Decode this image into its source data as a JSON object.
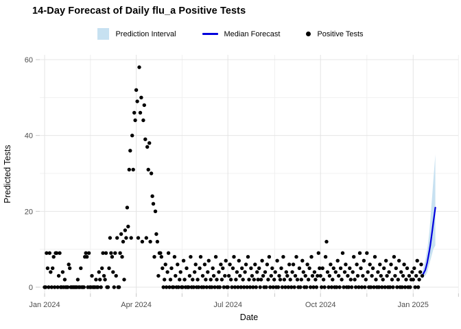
{
  "title": "14-Day Forecast of Daily flu_a Positive Tests",
  "legend": {
    "items": [
      {
        "label": "Prediction Interval",
        "type": "band",
        "color": "#c7e1f1"
      },
      {
        "label": "Median Forecast",
        "type": "line",
        "color": "#0000dd"
      },
      {
        "label": "Positive Tests",
        "type": "point",
        "color": "#000000"
      }
    ]
  },
  "axes": {
    "x_title": "Date",
    "y_title": "Predicted Tests",
    "x_tick_labels": [
      "Jan 2024",
      "Apr 2024",
      "Jul 2024",
      "Oct 2024",
      "Jan 2025"
    ],
    "y_tick_labels": [
      "0",
      "20",
      "40",
      "60"
    ]
  },
  "colors": {
    "grid_major": "#e4e4e4",
    "grid_minor": "#f0f0f0",
    "tick_mark": "#c8c8c8",
    "axis_text": "#4d4d4d",
    "band": "#c7e1f1",
    "median_line": "#0000dd",
    "point": "#000000"
  },
  "chart_data": {
    "type": "scatter",
    "title": "14-Day Forecast of Daily flu_a Positive Tests",
    "xlabel": "Date",
    "ylabel": "Predicted Tests",
    "ylim": [
      0,
      60
    ],
    "y_major_ticks": [
      0,
      20,
      40,
      60
    ],
    "y_minor_ticks": [
      10,
      30,
      50
    ],
    "x_major_ticks": [
      {
        "label": "Jan 2024",
        "day": 0
      },
      {
        "label": "Apr 2024",
        "day": 91
      },
      {
        "label": "Jul 2024",
        "day": 182
      },
      {
        "label": "Oct 2024",
        "day": 274
      },
      {
        "label": "Jan 2025",
        "day": 366
      }
    ],
    "x_minor_tick_days": [
      45.5,
      136.5,
      228.5,
      320,
      411
    ],
    "grid": true,
    "legend_position": "top-center",
    "observed": {
      "name": "Positive Tests",
      "start_date": "2024-01-01",
      "note": "daily counts, day 0 = 2024-01-01, approximate values read from plot",
      "daily_values": [
        0,
        0,
        9,
        5,
        0,
        9,
        4,
        0,
        5,
        8,
        0,
        9,
        9,
        0,
        3,
        9,
        0,
        0,
        4,
        0,
        2,
        0,
        0,
        0,
        6,
        5,
        0,
        0,
        0,
        0,
        0,
        0,
        0,
        2,
        0,
        0,
        5,
        0,
        0,
        0,
        8,
        9,
        8,
        0,
        9,
        0,
        0,
        3,
        0,
        0,
        0,
        2,
        0,
        0,
        4,
        2,
        0,
        5,
        9,
        3,
        2,
        9,
        0,
        0,
        5,
        13,
        9,
        8,
        4,
        0,
        9,
        3,
        13,
        0,
        0,
        9,
        14,
        8,
        12,
        2,
        15,
        13,
        21,
        16,
        31,
        36,
        13,
        40,
        31,
        46,
        44,
        52,
        49,
        13,
        58,
        46,
        50,
        12,
        44,
        48,
        39,
        13,
        37,
        31,
        38,
        12,
        30,
        24,
        22,
        8,
        20,
        14,
        12,
        3,
        9,
        9,
        8,
        5,
        0,
        2,
        6,
        0,
        4,
        9,
        0,
        2,
        5,
        0,
        0,
        8,
        3,
        0,
        6,
        0,
        2,
        4,
        0,
        0,
        7,
        2,
        0,
        5,
        0,
        0,
        3,
        8,
        0,
        2,
        0,
        4,
        6,
        0,
        2,
        0,
        5,
        8,
        0,
        3,
        0,
        6,
        2,
        0,
        4,
        7,
        0,
        2,
        0,
        5,
        3,
        0,
        8,
        2,
        0,
        4,
        0,
        6,
        2,
        5,
        0,
        3,
        7,
        0,
        0,
        3,
        6,
        2,
        0,
        5,
        8,
        0,
        2,
        4,
        0,
        7,
        3,
        0,
        5,
        2,
        0,
        4,
        6,
        0,
        8,
        2,
        0,
        5,
        3,
        0,
        2,
        6,
        0,
        4,
        2,
        5,
        0,
        2,
        7,
        3,
        0,
        4,
        0,
        6,
        2,
        8,
        0,
        3,
        5,
        0,
        2,
        4,
        0,
        7,
        0,
        3,
        2,
        5,
        0,
        8,
        2,
        0,
        4,
        3,
        0,
        6,
        2,
        0,
        4,
        6,
        0,
        3,
        8,
        2,
        0,
        5,
        0,
        2,
        7,
        4,
        0,
        3,
        0,
        6,
        2,
        5,
        0,
        8,
        3,
        0,
        4,
        2,
        0,
        3,
        9,
        5,
        3,
        0,
        5,
        2,
        0,
        8,
        12,
        4,
        0,
        3,
        6,
        0,
        2,
        5,
        0,
        4,
        0,
        7,
        3,
        0,
        5,
        2,
        9,
        0,
        4,
        6,
        0,
        3,
        0,
        5,
        2,
        0,
        4,
        8,
        2,
        0,
        6,
        3,
        0,
        9,
        5,
        0,
        3,
        7,
        0,
        2,
        9,
        4,
        0,
        6,
        0,
        3,
        5,
        0,
        8,
        2,
        0,
        4,
        0,
        6,
        3,
        0,
        2,
        5,
        0,
        7,
        3,
        0,
        4,
        0,
        6,
        2,
        0,
        8,
        3,
        5,
        0,
        2,
        7,
        0,
        4,
        0,
        3,
        6,
        0,
        2,
        5,
        0,
        3,
        0,
        2,
        4,
        2,
        5,
        0,
        3,
        7,
        0,
        2,
        4,
        6,
        3
      ]
    },
    "forecast": {
      "horizon_days": 14,
      "start_day": 375,
      "median": {
        "name": "Median Forecast",
        "values": [
          3,
          3.5,
          4,
          4.5,
          5.5,
          6.5,
          8,
          9.5,
          11,
          13,
          15,
          17,
          19,
          21
        ]
      },
      "interval": {
        "name": "Prediction Interval",
        "lower": [
          2,
          2.5,
          3,
          3,
          3.5,
          4,
          5,
          6,
          7,
          8,
          9,
          10,
          10.5,
          11
        ],
        "upper": [
          4,
          5,
          6,
          7,
          8.5,
          10,
          12,
          14.5,
          17.5,
          21,
          24.5,
          28,
          31.5,
          35
        ]
      }
    }
  }
}
